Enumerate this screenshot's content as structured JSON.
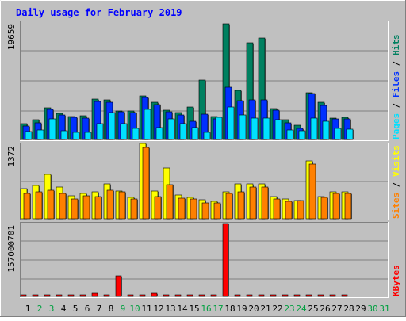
{
  "chart_data": {
    "type": "bar",
    "title": "Daily usage for February 2019",
    "colors": {
      "pages": "#00E0FF",
      "files": "#0030FF",
      "hits": "#008060",
      "visits": "#FFFF00",
      "sites": "#FF8000",
      "kbytes": "#FF0000",
      "weekend": "#00A040",
      "weekday": "#000000"
    },
    "days": [
      "1",
      "2",
      "3",
      "4",
      "5",
      "6",
      "7",
      "8",
      "9",
      "10",
      "11",
      "12",
      "13",
      "14",
      "15",
      "16",
      "17",
      "18",
      "19",
      "20",
      "21",
      "22",
      "23",
      "24",
      "25",
      "26",
      "27",
      "28",
      "29",
      "30",
      "31"
    ],
    "weekend_days": [
      "2",
      "3",
      "9",
      "10",
      "16",
      "17",
      "23",
      "24",
      "30",
      "31"
    ],
    "panels": [
      {
        "id": "hits-files-pages",
        "ymax_label": "19659",
        "ymax": 19659,
        "side_label": [
          {
            "text": "Pages",
            "color": "#00E0FF"
          },
          {
            "text": " / ",
            "color": "#000000"
          },
          {
            "text": "Files",
            "color": "#0030FF"
          },
          {
            "text": " / ",
            "color": "#000000"
          },
          {
            "text": "Hits",
            "color": "#008060"
          }
        ],
        "series": [
          {
            "name": "Hits",
            "color": "#008060",
            "values": [
              2700,
              3300,
              5300,
              4400,
              3900,
              4000,
              6800,
              6600,
              4800,
              4800,
              7300,
              6300,
              4900,
              4500,
              5500,
              10000,
              3800,
              19400,
              8300,
              16200,
              17000,
              5200,
              3300,
              2400,
              7900,
              6200,
              3600,
              3700,
              0,
              0,
              0
            ]
          },
          {
            "name": "Files",
            "color": "#0030FF",
            "values": [
              2300,
              2800,
              5100,
              4100,
              3700,
              3600,
              6400,
              6300,
              4600,
              4500,
              7100,
              5800,
              4700,
              4100,
              3100,
              4200,
              3400,
              8800,
              6500,
              6600,
              6600,
              4900,
              2800,
              1900,
              7700,
              5700,
              3400,
              3500,
              0,
              0,
              0
            ]
          },
          {
            "name": "Pages",
            "color": "#00E0FF",
            "values": [
              1300,
              1600,
              3400,
              1500,
              1200,
              1200,
              2600,
              4500,
              2700,
              1900,
              5000,
              2000,
              3500,
              2700,
              2000,
              1200,
              3700,
              5400,
              4100,
              3600,
              3600,
              3300,
              1600,
              1400,
              3600,
              3100,
              1800,
              1700,
              0,
              0,
              0
            ]
          }
        ]
      },
      {
        "id": "visits-sites",
        "ymax_label": "1372",
        "ymax": 1372,
        "side_label": [
          {
            "text": "Sites",
            "color": "#FF8000"
          },
          {
            "text": " / ",
            "color": "#000000"
          },
          {
            "text": "Visits",
            "color": "#FFFF00"
          }
        ],
        "series": [
          {
            "name": "Visits",
            "color": "#FFFF00",
            "values": [
              560,
              610,
              820,
              580,
              420,
              460,
              490,
              640,
              510,
              390,
              1390,
              510,
              930,
              440,
              390,
              350,
              320,
              500,
              640,
              640,
              640,
              410,
              370,
              340,
              1070,
              410,
              500,
              490,
              0,
              0,
              0
            ]
          },
          {
            "name": "Sites",
            "color": "#FF8000",
            "values": [
              460,
              490,
              520,
              470,
              370,
              420,
              410,
              520,
              490,
              360,
              1310,
              410,
              630,
              380,
              370,
              290,
              290,
              460,
              500,
              590,
              590,
              360,
              320,
              330,
              1000,
              390,
              460,
              460,
              0,
              0,
              0
            ]
          }
        ]
      },
      {
        "id": "kbytes",
        "ymax_label": "157000701",
        "ymax": 157000701,
        "side_label": [
          {
            "text": "KBytes",
            "color": "#FF0000"
          }
        ],
        "series": [
          {
            "name": "KBytes",
            "color": "#FF0000",
            "values": [
              1200000,
              1200000,
              1200000,
              1200000,
              1200000,
              1200000,
              7000000,
              2000000,
              45000000,
              2500000,
              2000000,
              6000000,
              1500000,
              1200000,
              1200000,
              1200000,
              1200000,
              157000701,
              1500000,
              1500000,
              3000000,
              1200000,
              1200000,
              1200000,
              1200000,
              1200000,
              1200000,
              1200000,
              0,
              0,
              0
            ]
          }
        ]
      }
    ]
  }
}
